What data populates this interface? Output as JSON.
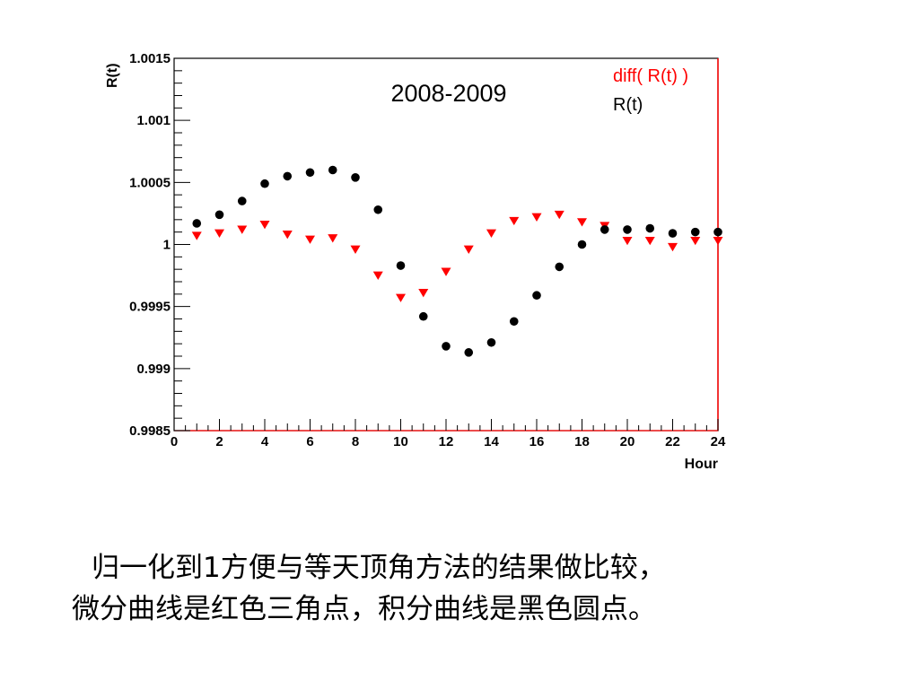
{
  "chart_data": {
    "type": "scatter",
    "title": "2008-2009",
    "xlabel": "Hour",
    "ylabel": "R(t)",
    "xlim": [
      0,
      24
    ],
    "ylim": [
      0.9985,
      1.0015
    ],
    "x_ticks": [
      0,
      2,
      4,
      6,
      8,
      10,
      12,
      14,
      16,
      18,
      20,
      22,
      24
    ],
    "x_tick_labels": [
      "0",
      "2",
      "4",
      "6",
      "8",
      "10",
      "12",
      "14",
      "16",
      "18",
      "20",
      "22",
      "24"
    ],
    "y_ticks": [
      0.9985,
      0.999,
      0.9995,
      1.0,
      1.0005,
      1.001,
      1.0015
    ],
    "y_tick_labels": [
      "0.9985",
      "0.999",
      "0.9995",
      "1",
      "1.0005",
      "1.001",
      "1.0015"
    ],
    "legend_position": "top-right",
    "grid": false,
    "series": [
      {
        "name": "diff( R(t) )",
        "marker": "triangle-down",
        "color": "#ff0000",
        "x": [
          1,
          2,
          3,
          4,
          5,
          6,
          7,
          8,
          9,
          10,
          11,
          12,
          13,
          14,
          15,
          16,
          17,
          18,
          19,
          20,
          21,
          22,
          23,
          24
        ],
        "y": [
          1.00007,
          1.00009,
          1.00012,
          1.00016,
          1.00008,
          1.00004,
          1.00005,
          0.99996,
          0.99975,
          0.99957,
          0.99961,
          0.99978,
          0.99996,
          1.00009,
          1.00019,
          1.00022,
          1.00024,
          1.00018,
          1.00015,
          1.00003,
          1.00003,
          0.99998,
          1.00003,
          1.00003
        ]
      },
      {
        "name": "R(t)",
        "marker": "circle",
        "color": "#000000",
        "x": [
          1,
          2,
          3,
          4,
          5,
          6,
          7,
          8,
          9,
          10,
          11,
          12,
          13,
          14,
          15,
          16,
          17,
          18,
          19,
          20,
          21,
          22,
          23,
          24
        ],
        "y": [
          1.00017,
          1.00024,
          1.00035,
          1.00049,
          1.00055,
          1.00058,
          1.0006,
          1.00054,
          1.00028,
          0.99983,
          0.99942,
          0.99918,
          0.99913,
          0.99921,
          0.99938,
          0.99959,
          0.99982,
          1.0,
          1.00012,
          1.00012,
          1.00013,
          1.00009,
          1.0001,
          1.0001
        ]
      }
    ]
  },
  "caption": {
    "line1": "归一化到1方便与等天顶角方法的结果做比较，",
    "line2": "微分曲线是红色三角点，积分曲线是黑色圆点。"
  }
}
